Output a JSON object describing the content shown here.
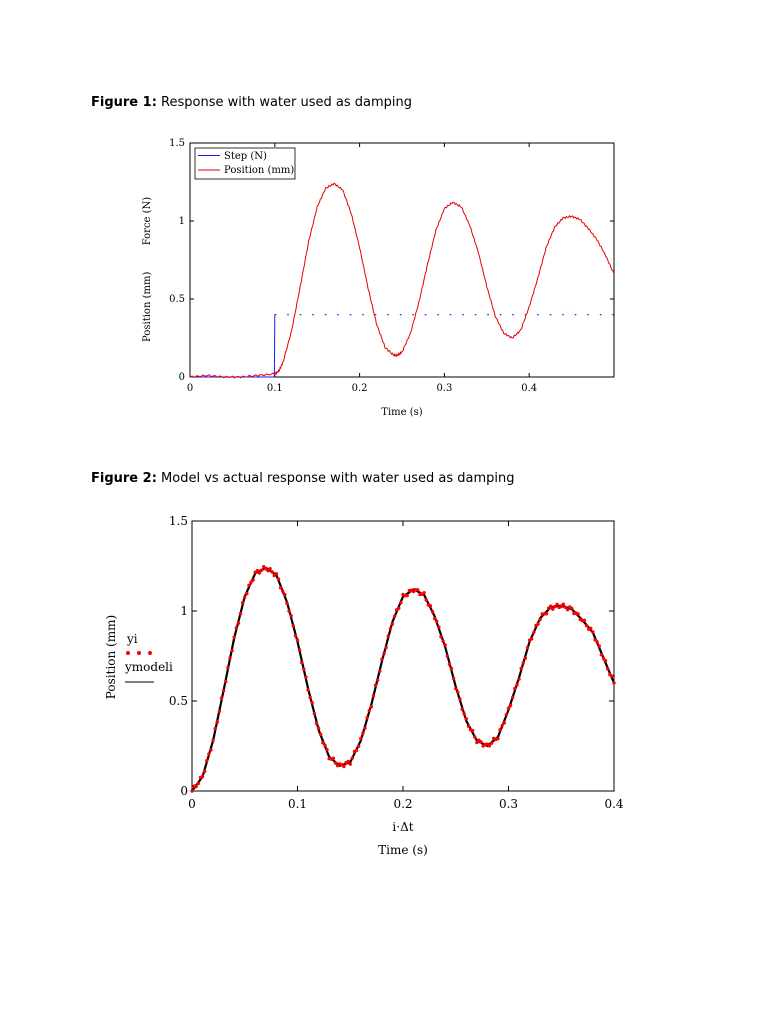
{
  "captions": {
    "fig1": {
      "label": "Figure 1:",
      "text": " Response with water used as damping"
    },
    "fig2": {
      "label": "Figure 2:",
      "text": " Model vs actual response with water used as damping"
    }
  },
  "colors": {
    "step": "#1a1aff",
    "position": "#e60000",
    "model": "#000000",
    "data_points": "#ff0000"
  },
  "chart_data": [
    {
      "type": "line",
      "title": "",
      "xlabel": "Time (s)",
      "ylabel_lines": [
        "Force (N)",
        "Position (mm)"
      ],
      "xlim": [
        0,
        0.5
      ],
      "ylim": [
        0,
        1.5
      ],
      "xticks": [
        0,
        0.1,
        0.2,
        0.3,
        0.4
      ],
      "xtick_labels": [
        "0",
        "0.1",
        "0.2",
        "0.3",
        "0.4"
      ],
      "yticks": [
        0,
        0.5,
        1,
        1.5
      ],
      "ytick_labels": [
        "0",
        "0.5",
        "1",
        "1.5"
      ],
      "grid": false,
      "legend": "top-left",
      "series": [
        {
          "name": "Step (N)",
          "color": "#1a1aff",
          "style": "dotted-after-step",
          "x": [
            0,
            0.0995,
            0.1,
            0.5
          ],
          "y": [
            0,
            0,
            0.4,
            0.4
          ]
        },
        {
          "name": "Position (mm)",
          "color": "#e60000",
          "style": "solid",
          "x": [
            0,
            0.02,
            0.04,
            0.06,
            0.08,
            0.1,
            0.105,
            0.11,
            0.12,
            0.13,
            0.14,
            0.15,
            0.16,
            0.17,
            0.18,
            0.19,
            0.2,
            0.21,
            0.22,
            0.23,
            0.24,
            0.245,
            0.25,
            0.26,
            0.27,
            0.28,
            0.29,
            0.3,
            0.31,
            0.32,
            0.33,
            0.34,
            0.35,
            0.36,
            0.37,
            0.38,
            0.39,
            0.4,
            0.41,
            0.42,
            0.43,
            0.44,
            0.45,
            0.46,
            0.47,
            0.48,
            0.49,
            0.5
          ],
          "y": [
            0,
            0.01,
            0,
            0,
            0.01,
            0.02,
            0.04,
            0.1,
            0.3,
            0.58,
            0.87,
            1.09,
            1.21,
            1.24,
            1.2,
            1.05,
            0.83,
            0.57,
            0.34,
            0.19,
            0.14,
            0.14,
            0.16,
            0.28,
            0.48,
            0.72,
            0.94,
            1.08,
            1.12,
            1.09,
            0.97,
            0.8,
            0.58,
            0.39,
            0.28,
            0.25,
            0.3,
            0.45,
            0.63,
            0.83,
            0.96,
            1.02,
            1.03,
            1.01,
            0.95,
            0.88,
            0.78,
            0.66
          ]
        }
      ]
    },
    {
      "type": "line",
      "title": "",
      "xlabel": "Time (s)",
      "xlabel_secondary": "i·Δt",
      "ylabel": "Position (mm)",
      "xlim": [
        0,
        0.4
      ],
      "ylim": [
        0,
        1.5
      ],
      "xticks": [
        0,
        0.1,
        0.2,
        0.3,
        0.4
      ],
      "xtick_labels": [
        "0",
        "0.1",
        "0.2",
        "0.3",
        "0.4"
      ],
      "yticks": [
        0,
        0.5,
        1,
        1.5
      ],
      "ytick_labels": [
        "0",
        "0.5",
        "1",
        "1.5"
      ],
      "grid": false,
      "legend": "left",
      "legend_labels": {
        "data": "yi",
        "model": "ymodeli"
      },
      "series": [
        {
          "name": "yi",
          "color": "#ff0000",
          "style": "points",
          "x": [
            0,
            0.01,
            0.02,
            0.03,
            0.04,
            0.05,
            0.06,
            0.07,
            0.08,
            0.09,
            0.1,
            0.11,
            0.12,
            0.13,
            0.14,
            0.15,
            0.16,
            0.17,
            0.18,
            0.19,
            0.2,
            0.21,
            0.22,
            0.23,
            0.24,
            0.25,
            0.26,
            0.27,
            0.28,
            0.29,
            0.3,
            0.31,
            0.32,
            0.33,
            0.34,
            0.35,
            0.36,
            0.37,
            0.38,
            0.39,
            0.4
          ],
          "y": [
            0,
            0.08,
            0.28,
            0.56,
            0.85,
            1.08,
            1.21,
            1.24,
            1.2,
            1.05,
            0.83,
            0.57,
            0.34,
            0.19,
            0.14,
            0.16,
            0.28,
            0.48,
            0.72,
            0.94,
            1.08,
            1.12,
            1.09,
            0.97,
            0.8,
            0.58,
            0.39,
            0.28,
            0.25,
            0.3,
            0.45,
            0.63,
            0.83,
            0.96,
            1.02,
            1.03,
            1.01,
            0.95,
            0.88,
            0.74,
            0.6
          ]
        },
        {
          "name": "ymodeli",
          "color": "#000000",
          "style": "solid",
          "x": [
            0,
            0.01,
            0.02,
            0.03,
            0.04,
            0.05,
            0.06,
            0.07,
            0.08,
            0.09,
            0.1,
            0.11,
            0.12,
            0.13,
            0.14,
            0.15,
            0.16,
            0.17,
            0.18,
            0.19,
            0.2,
            0.21,
            0.22,
            0.23,
            0.24,
            0.25,
            0.26,
            0.27,
            0.28,
            0.29,
            0.3,
            0.31,
            0.32,
            0.33,
            0.34,
            0.35,
            0.36,
            0.37,
            0.38,
            0.39,
            0.4
          ],
          "y": [
            0,
            0.08,
            0.28,
            0.56,
            0.85,
            1.08,
            1.21,
            1.24,
            1.2,
            1.05,
            0.83,
            0.57,
            0.34,
            0.19,
            0.14,
            0.16,
            0.28,
            0.48,
            0.72,
            0.94,
            1.08,
            1.12,
            1.09,
            0.97,
            0.8,
            0.58,
            0.39,
            0.28,
            0.25,
            0.3,
            0.45,
            0.63,
            0.83,
            0.96,
            1.02,
            1.03,
            1.01,
            0.95,
            0.88,
            0.74,
            0.6
          ]
        }
      ]
    }
  ]
}
